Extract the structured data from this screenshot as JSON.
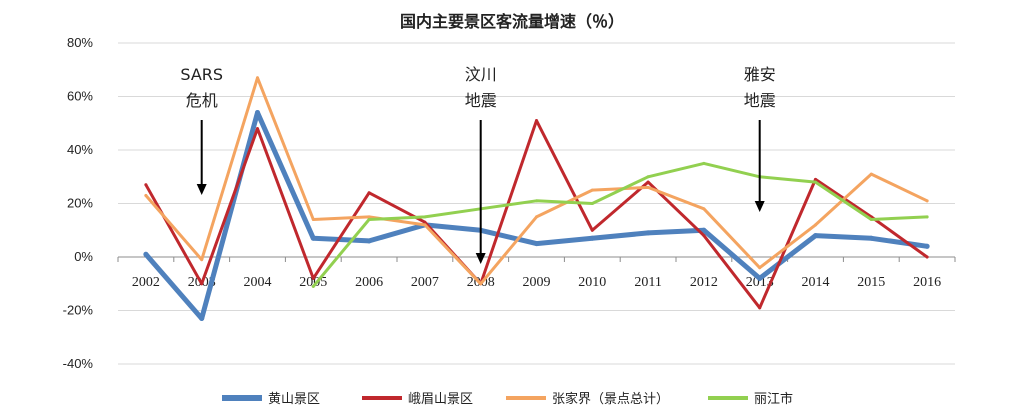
{
  "chart_data": {
    "type": "line",
    "title": "国内主要景区客流量增速（％）",
    "x": [
      "2002",
      "2003",
      "2004",
      "2005",
      "2006",
      "2007",
      "2008",
      "2009",
      "2010",
      "2011",
      "2012",
      "2013",
      "2014",
      "2015",
      "2016"
    ],
    "ylim": [
      -40,
      80
    ],
    "yticks": [
      -40,
      -20,
      0,
      20,
      40,
      60,
      80
    ],
    "ytick_labels": [
      "-40%",
      "-20%",
      "0%",
      "20%",
      "40%",
      "60%",
      "80%"
    ],
    "grid": "horizontal",
    "legend_position": "bottom",
    "series": [
      {
        "name": "黄山景区",
        "color": "#4f81bd",
        "width": 5,
        "values": [
          1,
          -23,
          54,
          7,
          6,
          12,
          10,
          5,
          7,
          9,
          10,
          -8,
          8,
          7,
          4
        ]
      },
      {
        "name": "峨眉山景区",
        "color": "#c0282d",
        "width": 3,
        "values": [
          27,
          -10,
          48,
          -8,
          24,
          13,
          -10,
          51,
          10,
          28,
          8,
          -19,
          29,
          15,
          0
        ]
      },
      {
        "name": "张家界（景点总计）",
        "color": "#f4a460",
        "width": 3,
        "values": [
          23,
          -1,
          67,
          14,
          15,
          12,
          -10,
          15,
          25,
          26,
          18,
          -4,
          12,
          31,
          21
        ]
      },
      {
        "name": "丽江市",
        "color": "#92d050",
        "width": 3,
        "values": [
          null,
          null,
          null,
          -11,
          14,
          15,
          18,
          21,
          20,
          30,
          35,
          30,
          28,
          14,
          15
        ]
      }
    ],
    "annotations": [
      {
        "lines": [
          "SARS",
          "危机"
        ],
        "x": "2003"
      },
      {
        "lines": [
          "汶川",
          "地震"
        ],
        "x": "2008"
      },
      {
        "lines": [
          "雅安",
          "地震"
        ],
        "x": "2013"
      }
    ]
  }
}
